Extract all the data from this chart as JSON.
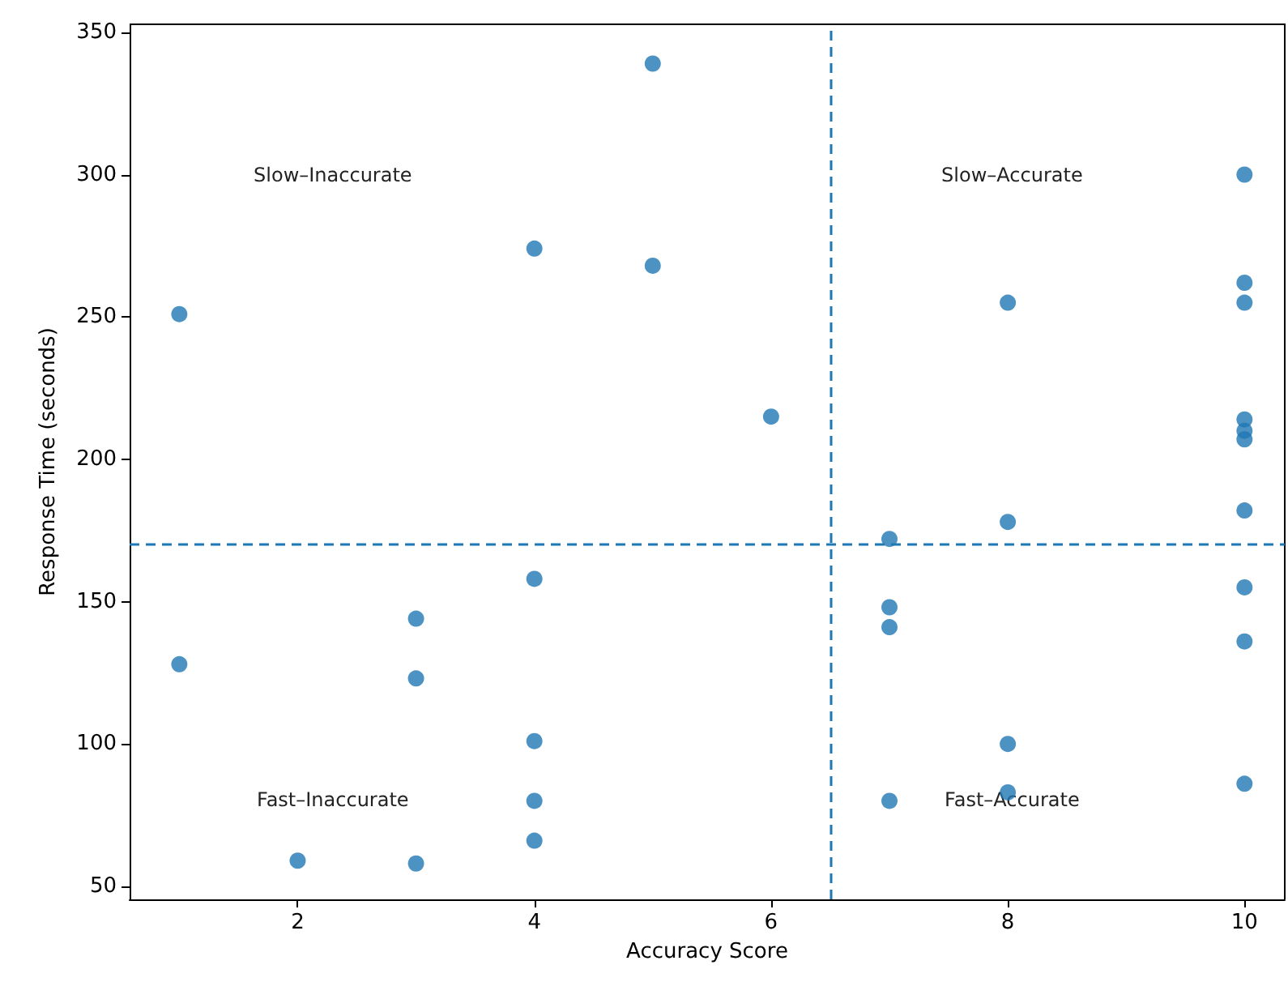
{
  "chart_data": {
    "type": "scatter",
    "xlabel": "Accuracy Score",
    "ylabel": "Response Time (seconds)",
    "x": [
      1,
      1,
      2,
      3,
      3,
      3,
      4,
      4,
      4,
      4,
      4,
      5,
      5,
      6,
      7,
      7,
      7,
      7,
      8,
      8,
      8,
      8,
      10,
      10,
      10,
      10,
      10,
      10,
      10,
      10,
      10,
      10
    ],
    "values": [
      251,
      128,
      59,
      144,
      123,
      58,
      274,
      158,
      101,
      80,
      66,
      339,
      268,
      215,
      172,
      148,
      141,
      80,
      255,
      178,
      100,
      83,
      300,
      262,
      255,
      214,
      210,
      207,
      182,
      155,
      136,
      86
    ],
    "color": "#1f77b4",
    "marker": "circle",
    "xlim": [
      0.58,
      10.34
    ],
    "xticks": [
      2,
      4,
      6,
      8,
      10
    ],
    "ylim": [
      45.4,
      352.8
    ],
    "yticks": [
      50,
      100,
      150,
      200,
      250,
      300,
      350
    ],
    "ref_lines": [
      {
        "axis": "x",
        "value": 6.5,
        "color": "#1f77b4",
        "line_style": "dashed"
      },
      {
        "axis": "y",
        "value": 170,
        "color": "#1f77b4",
        "line_style": "dashed"
      }
    ],
    "annotations": [
      "Slow–Inaccurate",
      "Slow–Accurate",
      "Fast–Inaccurate",
      "Fast–Accurate"
    ]
  }
}
